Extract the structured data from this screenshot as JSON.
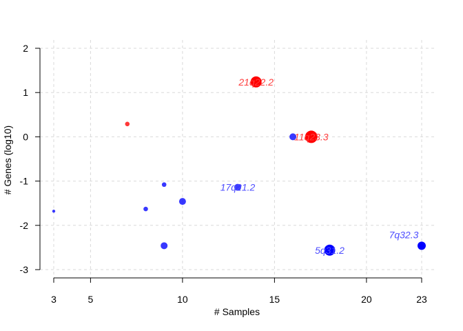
{
  "chart_data": {
    "type": "scatter",
    "xlabel": "# Samples",
    "ylabel": "# Genes (log10)",
    "xlim": [
      3,
      23
    ],
    "ylim": [
      -3,
      2
    ],
    "xticks": [
      "3",
      "5",
      "10",
      "15",
      "20",
      "23"
    ],
    "xtick_values": [
      3,
      5,
      10,
      15,
      20,
      23
    ],
    "yticks": [
      "-3",
      "-2",
      "-1",
      "0",
      "1",
      "2"
    ],
    "ytick_values": [
      -3,
      -2,
      -1,
      0,
      1,
      2
    ],
    "grid": true,
    "points": [
      {
        "x": 3,
        "y": -1.68,
        "size": 1,
        "color": "blue",
        "label": ""
      },
      {
        "x": 7,
        "y": 0.29,
        "size": 2,
        "color": "red",
        "label": ""
      },
      {
        "x": 8,
        "y": -1.63,
        "size": 2,
        "color": "blue",
        "label": ""
      },
      {
        "x": 9,
        "y": -1.08,
        "size": 2,
        "color": "blue",
        "label": ""
      },
      {
        "x": 9,
        "y": -2.46,
        "size": 3,
        "color": "blue",
        "label": ""
      },
      {
        "x": 10,
        "y": -1.46,
        "size": 3,
        "color": "blue",
        "label": ""
      },
      {
        "x": 13,
        "y": -1.14,
        "size": 3,
        "color": "blue",
        "label": "17q21.2"
      },
      {
        "x": 14,
        "y": 1.24,
        "size": 5,
        "color": "red",
        "label": "21q22.2"
      },
      {
        "x": 16,
        "y": 0.0,
        "size": 3,
        "color": "blue",
        "label": ""
      },
      {
        "x": 17,
        "y": 0.0,
        "size": 6,
        "color": "red",
        "label": "11q23.3"
      },
      {
        "x": 18,
        "y": -2.56,
        "size": 5,
        "color": "blue",
        "label": "5q31.2"
      },
      {
        "x": 23,
        "y": -2.46,
        "size": 4,
        "color": "blue",
        "label": "7q32.3"
      }
    ]
  },
  "colors": {
    "blue": "#0000ff",
    "red": "#ff0000",
    "blue_label": "#4d4dff",
    "red_label": "#ff3b3b",
    "grid": "#d9d9d9",
    "axis": "#000000"
  }
}
